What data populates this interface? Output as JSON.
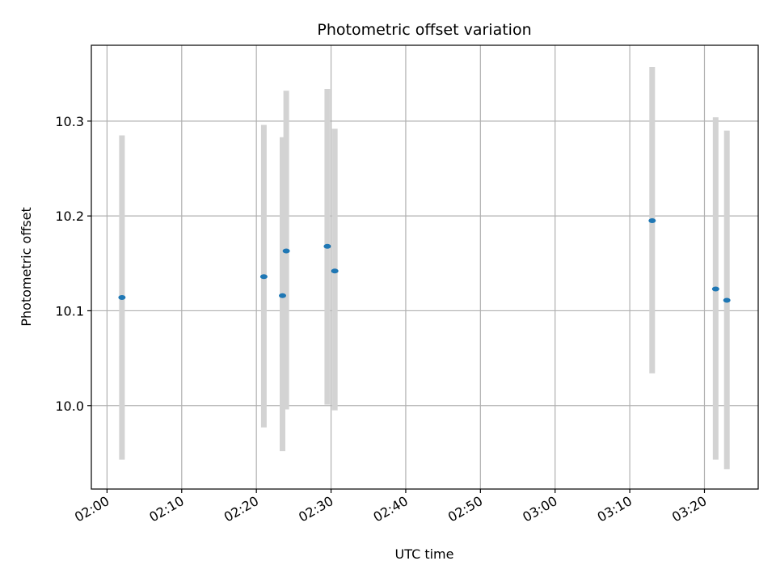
{
  "chart_data": {
    "type": "scatter",
    "title": "Photometric offset variation",
    "xlabel": "UTC time",
    "ylabel": "Photometric offset",
    "x_ticks": [
      "02:00",
      "02:10",
      "02:20",
      "02:30",
      "02:40",
      "02:50",
      "03:00",
      "03:10",
      "03:20"
    ],
    "y_ticks": [
      "10.0",
      "10.1",
      "10.2",
      "10.3"
    ],
    "xlim": [
      "01:57.9",
      "03:27.2"
    ],
    "ylim": [
      9.912,
      10.38
    ],
    "grid": true,
    "points": [
      {
        "x": "02:02",
        "y": 10.114,
        "yerr_low": 9.943,
        "yerr_high": 10.285
      },
      {
        "x": "02:21",
        "y": 10.136,
        "yerr_low": 9.977,
        "yerr_high": 10.296
      },
      {
        "x": "02:23.5",
        "y": 10.116,
        "yerr_low": 9.952,
        "yerr_high": 10.283
      },
      {
        "x": "02:24",
        "y": 10.163,
        "yerr_low": 9.996,
        "yerr_high": 10.332
      },
      {
        "x": "02:29.5",
        "y": 10.168,
        "yerr_low": 10.001,
        "yerr_high": 10.334
      },
      {
        "x": "02:30.5",
        "y": 10.142,
        "yerr_low": 9.995,
        "yerr_high": 10.292
      },
      {
        "x": "03:13",
        "y": 10.195,
        "yerr_low": 10.034,
        "yerr_high": 10.357
      },
      {
        "x": "03:21.5",
        "y": 10.123,
        "yerr_low": 9.943,
        "yerr_high": 10.304
      },
      {
        "x": "03:23",
        "y": 10.111,
        "yerr_low": 9.933,
        "yerr_high": 10.29
      }
    ],
    "colors": {
      "marker": "#1f77b4",
      "errorbar": "#d3d3d3",
      "grid": "#b0b0b0"
    }
  }
}
